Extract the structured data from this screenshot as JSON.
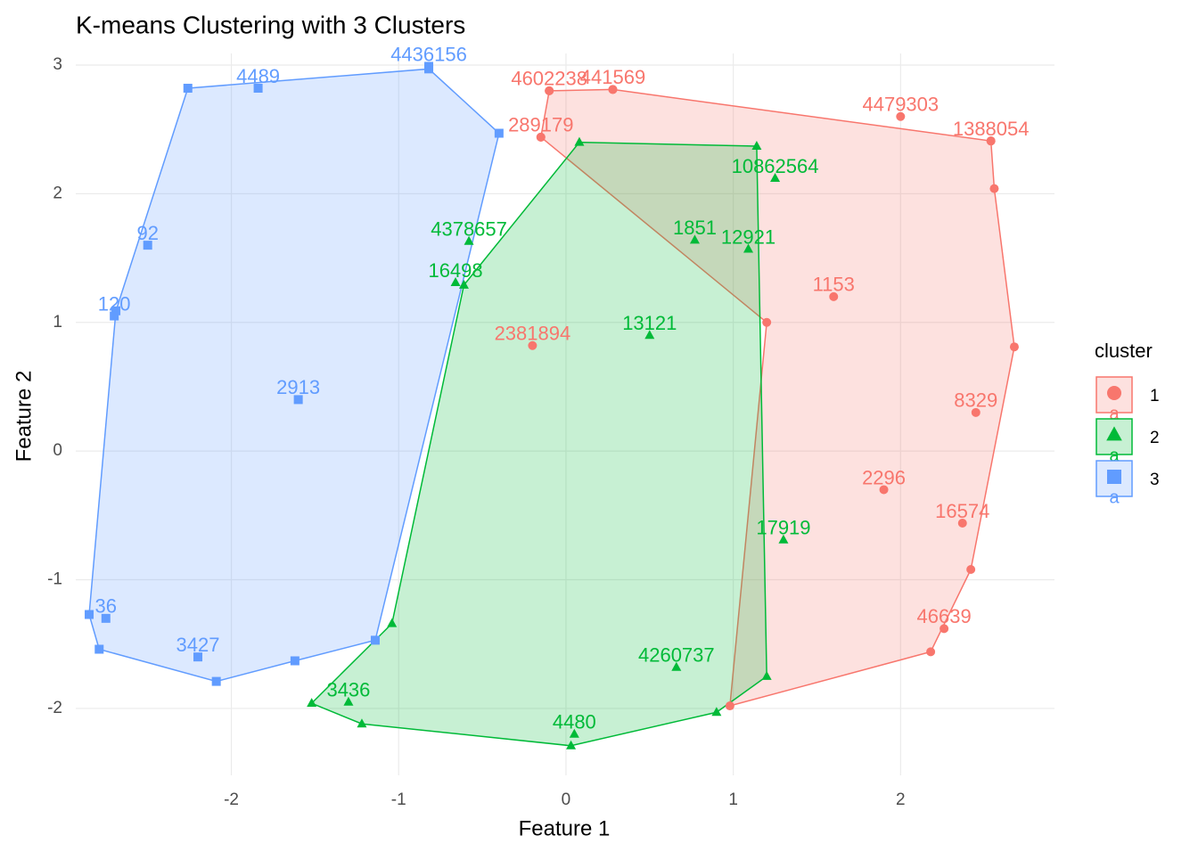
{
  "chart_data": {
    "type": "scatter",
    "title": "K-means Clustering with 3 Clusters",
    "xlabel": "Feature 1",
    "ylabel": "Feature 2",
    "xlim": [
      -2.93,
      2.92
    ],
    "ylim": [
      -2.52,
      3.09
    ],
    "xticks": [
      -2,
      -1,
      0,
      1,
      2
    ],
    "yticks": [
      -2,
      -1,
      0,
      1,
      2,
      3
    ],
    "grid": true,
    "legend_title": "cluster",
    "legend_position": "right",
    "legend_key_text": "a",
    "series": [
      {
        "name": "1",
        "color": "#f8766d",
        "marker": "circle",
        "x": [
          2.0,
          0.28,
          -0.1,
          -0.15,
          2.54,
          -0.2,
          2.37,
          2.26,
          1.6,
          1.9,
          2.45
        ],
        "y": [
          2.6,
          2.81,
          2.8,
          2.44,
          2.41,
          0.82,
          -0.56,
          -1.38,
          1.2,
          -0.3,
          0.3
        ],
        "labels": [
          "4479303",
          "441569",
          "4602238",
          "289179",
          "1388054",
          "2381894",
          "16574",
          "46639",
          "1153",
          "2296",
          "8329"
        ],
        "hull_x": [
          -0.1,
          0.28,
          2.54,
          2.56,
          2.68,
          2.42,
          2.18,
          0.98,
          1.2,
          -0.15
        ],
        "hull_y": [
          2.8,
          2.81,
          2.41,
          2.04,
          0.81,
          -0.92,
          -1.56,
          -1.98,
          1.0,
          2.44
        ]
      },
      {
        "name": "2",
        "color": "#00ba38",
        "marker": "triangle",
        "x": [
          0.77,
          1.09,
          1.3,
          0.66,
          -0.66,
          1.25,
          -0.58,
          -1.3,
          0.05,
          0.5
        ],
        "y": [
          1.64,
          1.57,
          -0.69,
          -1.68,
          1.31,
          2.12,
          1.63,
          -1.95,
          -2.2,
          0.9
        ],
        "labels": [
          "1851",
          "12921",
          "17919",
          "4260737",
          "16498",
          "10862564",
          "4378657",
          "3436",
          "4480",
          "13121"
        ],
        "hull_x": [
          -1.52,
          -1.22,
          0.03,
          0.9,
          1.2,
          1.14,
          0.08,
          -0.61,
          -1.04
        ],
        "hull_y": [
          -1.96,
          -2.12,
          -2.29,
          -2.03,
          -1.75,
          2.37,
          2.4,
          1.29,
          -1.34
        ]
      },
      {
        "name": "3",
        "color": "#619cff",
        "marker": "square",
        "x": [
          -0.82,
          -1.84,
          -2.5,
          -2.7,
          -2.2,
          -1.6,
          -2.75
        ],
        "y": [
          2.99,
          2.82,
          1.6,
          1.05,
          -1.6,
          0.4,
          -1.3
        ],
        "labels": [
          "4436156",
          "4489",
          "92",
          "120",
          "3427",
          "2913",
          "36"
        ],
        "hull_x": [
          -2.26,
          -0.82,
          -0.4,
          -1.14,
          -1.62,
          -2.09,
          -2.79,
          -2.85,
          -2.69
        ],
        "hull_y": [
          2.82,
          2.97,
          2.47,
          -1.47,
          -1.63,
          -1.79,
          -1.54,
          -1.27,
          1.09
        ]
      }
    ]
  }
}
